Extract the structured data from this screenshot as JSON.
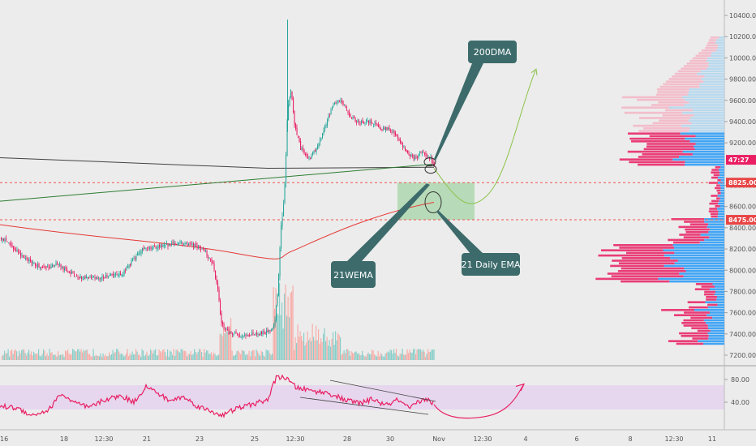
{
  "chart_data": [
    {
      "type": "candlestick",
      "panel": "price",
      "y_axis": {
        "ylim": [
          7150,
          10500
        ],
        "ticks": [
          "10400.00",
          "10200.00",
          "10000.00",
          "9800.00",
          "9600.00",
          "9400.00",
          "9200.00",
          "8800.00",
          "8600.00",
          "8400.00",
          "8200.00",
          "8000.00",
          "7800.00",
          "7600.00",
          "7400.00",
          "7200.00"
        ],
        "tick_values": [
          10400,
          10200,
          10000,
          9800,
          9600,
          9400,
          9200,
          8800,
          8600,
          8400,
          8200,
          8000,
          7800,
          7600,
          7400,
          7200
        ]
      },
      "price_tags": [
        {
          "label": "47:27",
          "value": 9040,
          "color": "#e91e63"
        },
        {
          "label": "8825.00",
          "value": 8825,
          "color": "#e84545"
        },
        {
          "label": "8475.00",
          "value": 8475,
          "color": "#e84545"
        }
      ],
      "horizontal_levels": [
        8825,
        8475
      ],
      "annotations": [
        "200DMA",
        "21WEMA",
        "21 Daily EMA"
      ],
      "projection": "upward curve toward ~9900",
      "support_zone": [
        8475,
        8825
      ],
      "colors": {
        "up": "#26a69a",
        "down": "#e91e63",
        "ema21": "#e53935",
        "dma200": "#424242",
        "wema21": "#2e7d32",
        "callout": "#3d6b6b",
        "zone": "#a5d6a7",
        "rsi": "#e91e63"
      }
    },
    {
      "type": "line",
      "panel": "rsi",
      "y_axis": {
        "ylim": [
          8,
          98
        ],
        "ticks": [
          "80.00",
          "40.00"
        ],
        "tick_values": [
          80,
          40
        ]
      },
      "band": [
        30,
        70
      ]
    }
  ],
  "x_axis": {
    "ticks": [
      "16",
      "18",
      "12:30",
      "21",
      "23",
      "25",
      "12:30",
      "28",
      "30",
      "Nov",
      "12:30",
      "4",
      "6",
      "8",
      "12:30",
      "11"
    ]
  }
}
